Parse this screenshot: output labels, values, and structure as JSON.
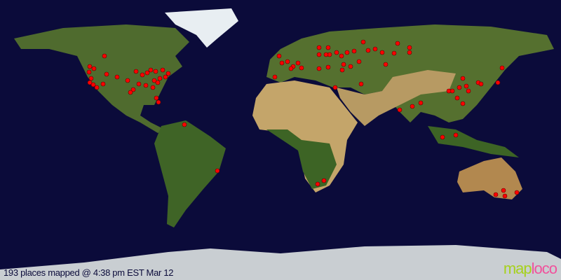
{
  "map": {
    "type": "world visitor map",
    "background_color": "#0b0b3a",
    "marker_color": "#ff0000",
    "marker_count": 193
  },
  "caption": "193 places mapped @ 4:38 pm EST Mar 12",
  "logo": {
    "part1": "map",
    "part2": "loco",
    "color1": "#a6d11c",
    "color2": "#f0529c"
  }
}
